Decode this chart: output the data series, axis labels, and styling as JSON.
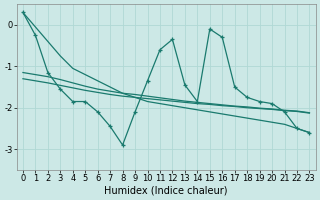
{
  "xlabel": "Humidex (Indice chaleur)",
  "background_color": "#cce8e6",
  "grid_color": "#b0d8d5",
  "line_color": "#1a7a6e",
  "x_values": [
    0,
    1,
    2,
    3,
    4,
    5,
    6,
    7,
    8,
    9,
    10,
    11,
    12,
    13,
    14,
    15,
    16,
    17,
    18,
    19,
    20,
    21,
    22,
    23
  ],
  "zigzag_y": [
    0.3,
    -0.25,
    -1.15,
    -1.55,
    -1.85,
    -1.85,
    -2.1,
    -2.45,
    -2.9,
    -2.1,
    -1.35,
    -0.6,
    -0.35,
    -1.45,
    -1.85,
    -0.1,
    -0.3,
    -1.5,
    -1.75,
    -1.85,
    -1.9,
    -2.1,
    -2.5,
    -2.6
  ],
  "diag_line_y": [
    0.3,
    -0.05,
    -0.4,
    -0.75,
    -1.05,
    -1.2,
    -1.35,
    -1.5,
    -1.65,
    -1.75,
    -1.85,
    -1.9,
    -1.95,
    -2.0,
    -2.05,
    -2.1,
    -2.15,
    -2.2,
    -2.25,
    -2.3,
    -2.35,
    -2.4,
    -2.5,
    -2.6
  ],
  "regr1_y": [
    -1.15,
    -1.2,
    -1.25,
    -1.32,
    -1.4,
    -1.48,
    -1.55,
    -1.6,
    -1.65,
    -1.68,
    -1.72,
    -1.76,
    -1.8,
    -1.84,
    -1.87,
    -1.9,
    -1.93,
    -1.96,
    -1.98,
    -2.01,
    -2.03,
    -2.06,
    -2.08,
    -2.12
  ],
  "regr2_y": [
    -1.3,
    -1.35,
    -1.4,
    -1.46,
    -1.52,
    -1.58,
    -1.63,
    -1.68,
    -1.72,
    -1.75,
    -1.78,
    -1.81,
    -1.84,
    -1.87,
    -1.9,
    -1.92,
    -1.95,
    -1.97,
    -2.0,
    -2.02,
    -2.04,
    -2.07,
    -2.09,
    -2.13
  ],
  "ylim": [
    -3.5,
    0.5
  ],
  "xlim": [
    -0.5,
    23.5
  ],
  "yticks": [
    0,
    -1,
    -2,
    -3
  ],
  "xticks": [
    0,
    1,
    2,
    3,
    4,
    5,
    6,
    7,
    8,
    9,
    10,
    11,
    12,
    13,
    14,
    15,
    16,
    17,
    18,
    19,
    20,
    21,
    22,
    23
  ],
  "tick_fontsize": 6,
  "xlabel_fontsize": 7
}
